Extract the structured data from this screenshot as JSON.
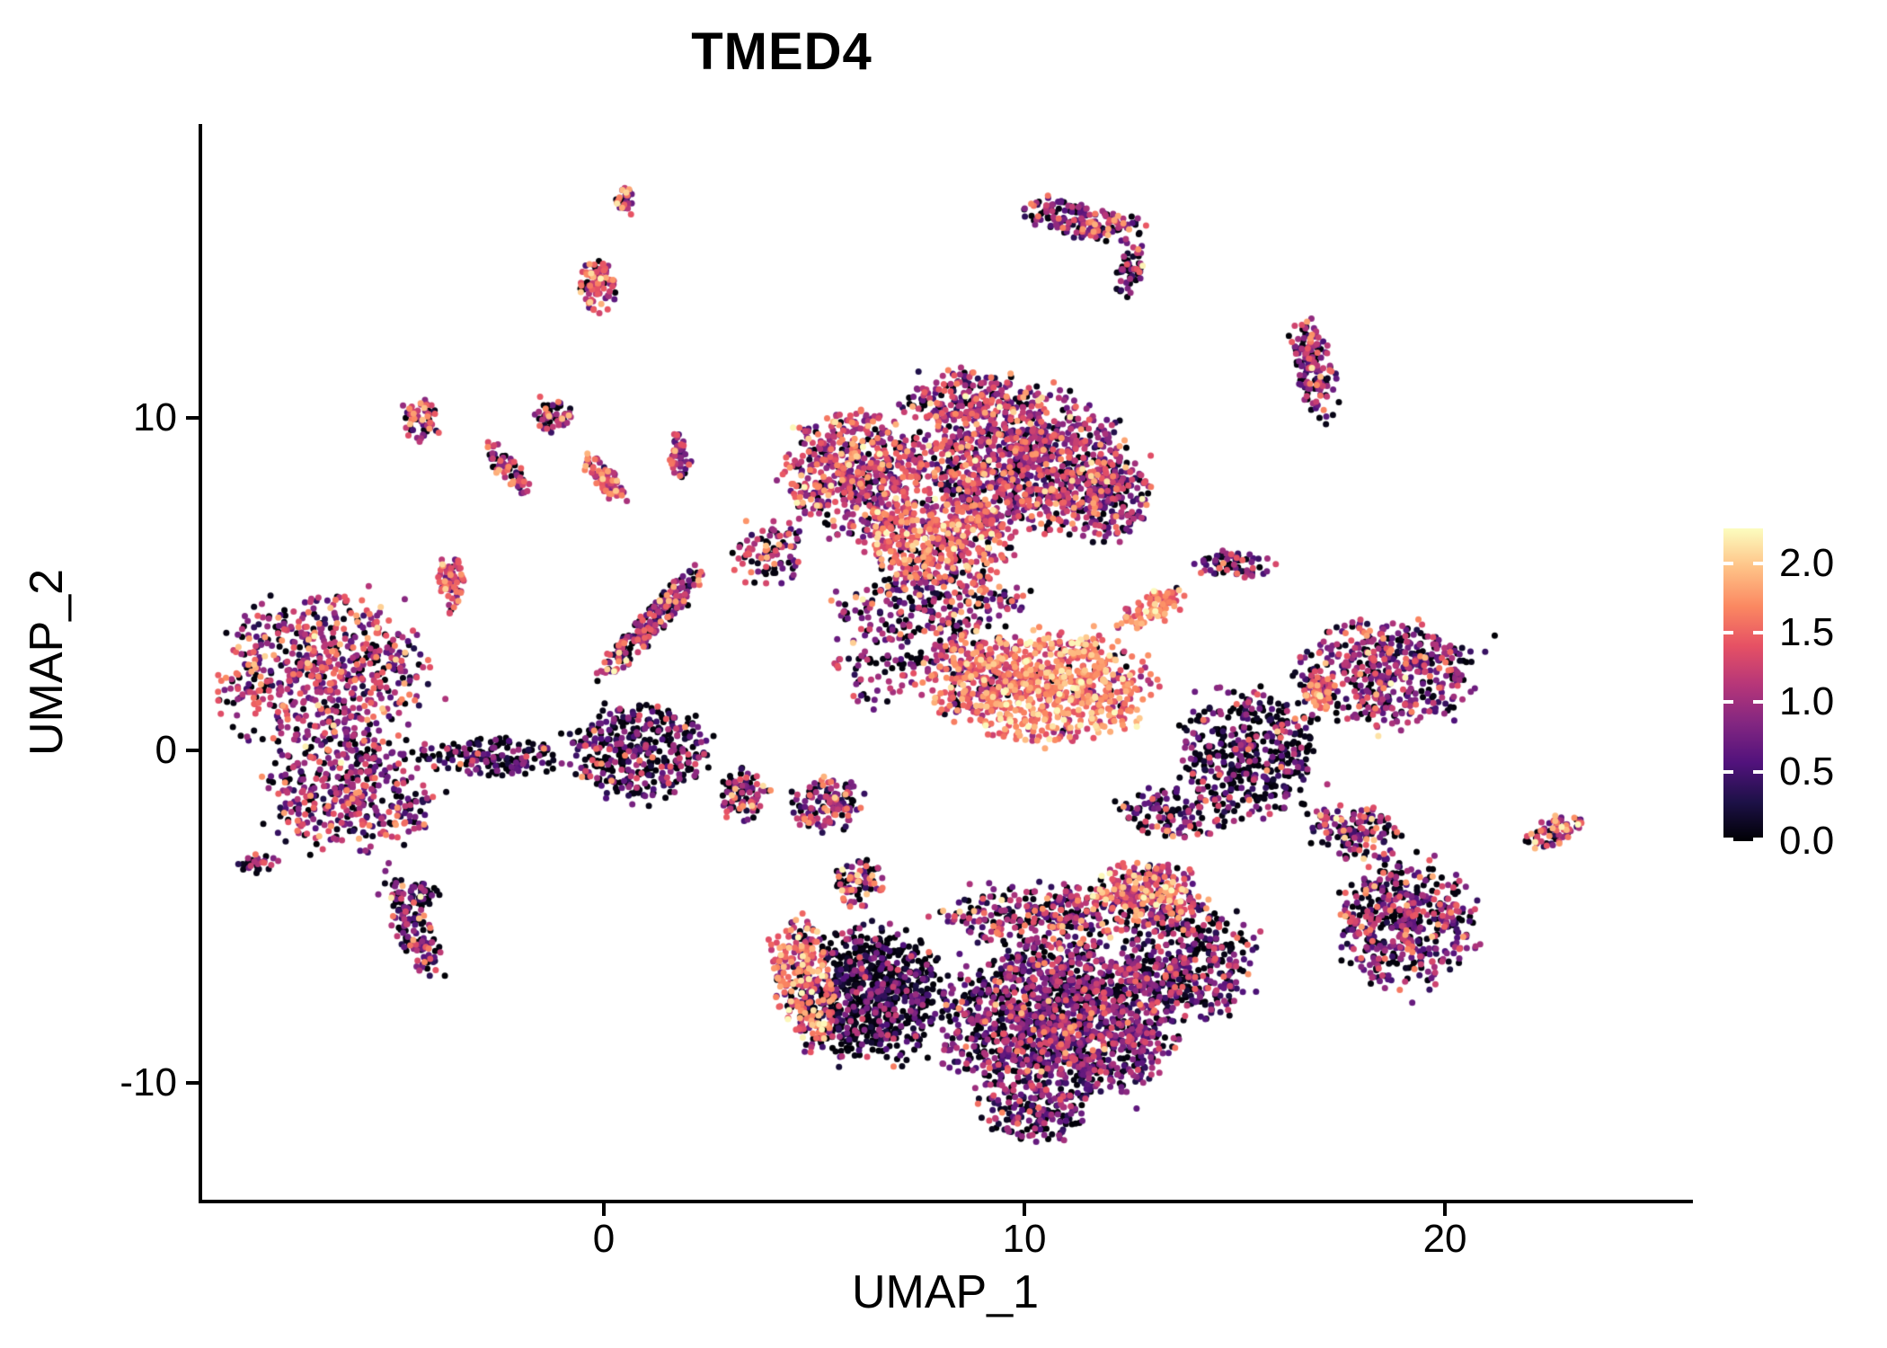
{
  "chart_data": {
    "type": "scatter",
    "title": "TMED4",
    "xlabel": "UMAP_1",
    "ylabel": "UMAP_2",
    "x_range": [
      -9.55,
      25.81
    ],
    "y_range": [
      -13.5,
      18.78
    ],
    "x_ticks": [
      0,
      10,
      20
    ],
    "y_ticks": [
      10,
      0,
      -10
    ],
    "grid": false,
    "background": "#ffffff",
    "point_radius_px": 3.5,
    "seed": 20,
    "colormap": {
      "name": "magma",
      "vmin": 0.0,
      "vmax": 2.25,
      "stops": [
        "#000004",
        "#1D1147",
        "#51127C",
        "#822681",
        "#B63679",
        "#E65164",
        "#FB8861",
        "#FEC287",
        "#FCFDBF"
      ]
    },
    "legend": {
      "position": "right",
      "tick_labels": [
        "2.0",
        "1.5",
        "1.0",
        "0.5",
        "0.0"
      ],
      "tick_values": [
        2.0,
        1.5,
        1.0,
        0.5,
        0.0
      ]
    },
    "clusters": [
      {
        "name": "left-main-upper",
        "cx": -6.7,
        "cy": 2.2,
        "rx": 2.3,
        "ry": 2.5,
        "rot": 0,
        "n": 650,
        "mean": 1.05,
        "sd": 0.45,
        "zero": 0.18
      },
      {
        "name": "left-main-lower",
        "cx": -6.0,
        "cy": -1.3,
        "rx": 2.0,
        "ry": 1.7,
        "rot": 0,
        "n": 380,
        "mean": 0.95,
        "sd": 0.45,
        "zero": 0.22
      },
      {
        "name": "left-tail",
        "cx": -4.6,
        "cy": -5.3,
        "rx": 0.45,
        "ry": 1.8,
        "rot": 20,
        "n": 130,
        "mean": 0.9,
        "sd": 0.5,
        "zero": 0.25
      },
      {
        "name": "left-top-spur",
        "cx": -3.6,
        "cy": 5.0,
        "rx": 0.3,
        "ry": 0.95,
        "rot": 0,
        "n": 70,
        "mean": 1.2,
        "sd": 0.4,
        "zero": 0.12
      },
      {
        "name": "nw-islet-a",
        "cx": -4.35,
        "cy": 9.9,
        "rx": 0.45,
        "ry": 0.6,
        "rot": 0,
        "n": 55,
        "mean": 1.2,
        "sd": 0.45,
        "zero": 0.15
      },
      {
        "name": "nw-streak-a",
        "cx": -2.3,
        "cy": 8.5,
        "rx": 0.3,
        "ry": 0.9,
        "rot": 30,
        "n": 60,
        "mean": 1.1,
        "sd": 0.45,
        "zero": 0.2
      },
      {
        "name": "nw-streak-b",
        "cx": 0.0,
        "cy": 8.2,
        "rx": 0.28,
        "ry": 0.85,
        "rot": 30,
        "n": 70,
        "mean": 1.3,
        "sd": 0.4,
        "zero": 0.1
      },
      {
        "name": "nw-islet-b",
        "cx": -1.2,
        "cy": 10.1,
        "rx": 0.45,
        "ry": 0.55,
        "rot": 0,
        "n": 50,
        "mean": 1.1,
        "sd": 0.5,
        "zero": 0.2
      },
      {
        "name": "top-tiny-islet",
        "cx": 0.5,
        "cy": 16.5,
        "rx": 0.22,
        "ry": 0.45,
        "rot": 0,
        "n": 30,
        "mean": 1.2,
        "sd": 0.5,
        "zero": 0.15
      },
      {
        "name": "top-islet",
        "cx": -0.15,
        "cy": 14.0,
        "rx": 0.42,
        "ry": 0.75,
        "rot": 0,
        "n": 90,
        "mean": 1.3,
        "sd": 0.45,
        "zero": 0.12
      },
      {
        "name": "top-right-ridge",
        "cx": 11.4,
        "cy": 15.9,
        "rx": 1.35,
        "ry": 0.55,
        "rot": -15,
        "n": 170,
        "mean": 0.95,
        "sd": 0.5,
        "zero": 0.25
      },
      {
        "name": "top-right-ridge-hook",
        "cx": 12.5,
        "cy": 14.4,
        "rx": 0.3,
        "ry": 0.8,
        "rot": -15,
        "n": 50,
        "mean": 0.9,
        "sd": 0.5,
        "zero": 0.25
      },
      {
        "name": "north-spur",
        "cx": 1.8,
        "cy": 8.9,
        "rx": 0.25,
        "ry": 0.7,
        "rot": 0,
        "n": 45,
        "mean": 1.1,
        "sd": 0.4,
        "zero": 0.15
      },
      {
        "name": "top-main-west",
        "cx": 6.0,
        "cy": 8.3,
        "rx": 1.6,
        "ry": 1.8,
        "rot": 0,
        "n": 550,
        "mean": 1.1,
        "sd": 0.45,
        "zero": 0.15
      },
      {
        "name": "top-main-east",
        "cx": 9.9,
        "cy": 8.7,
        "rx": 2.4,
        "ry": 2.0,
        "rot": 0,
        "n": 1000,
        "mean": 1.0,
        "sd": 0.45,
        "zero": 0.15
      },
      {
        "name": "top-main-south-orange",
        "cx": 7.9,
        "cy": 6.3,
        "rx": 1.7,
        "ry": 1.2,
        "rot": 0,
        "n": 450,
        "mean": 1.35,
        "sd": 0.4,
        "zero": 0.1
      },
      {
        "name": "top-main-crown",
        "cx": 8.6,
        "cy": 10.6,
        "rx": 1.5,
        "ry": 0.8,
        "rot": 0,
        "n": 180,
        "mean": 1.0,
        "sd": 0.45,
        "zero": 0.15
      },
      {
        "name": "top-main-east-edge",
        "cx": 11.9,
        "cy": 7.6,
        "rx": 1.1,
        "ry": 1.3,
        "rot": 0,
        "n": 220,
        "mean": 0.95,
        "sd": 0.45,
        "zero": 0.18
      },
      {
        "name": "top-main-fringe",
        "cx": 7.8,
        "cy": 4.5,
        "rx": 2.2,
        "ry": 1.0,
        "rot": 0,
        "n": 250,
        "mean": 0.9,
        "sd": 0.55,
        "zero": 0.3
      },
      {
        "name": "west-fringe",
        "cx": 3.9,
        "cy": 6.0,
        "rx": 0.8,
        "ry": 1.0,
        "rot": 0,
        "n": 90,
        "mean": 1.0,
        "sd": 0.5,
        "zero": 0.25
      },
      {
        "name": "center-bright-core",
        "cx": 10.7,
        "cy": 1.9,
        "rx": 2.2,
        "ry": 1.6,
        "rot": 0,
        "n": 750,
        "mean": 1.55,
        "sd": 0.35,
        "zero": 0.04
      },
      {
        "name": "center-bright-west",
        "cx": 8.7,
        "cy": 2.4,
        "rx": 1.1,
        "ry": 1.4,
        "rot": 0,
        "n": 220,
        "mean": 1.25,
        "sd": 0.4,
        "zero": 0.1
      },
      {
        "name": "center-beak",
        "cx": 13.1,
        "cy": 4.3,
        "rx": 0.9,
        "ry": 0.45,
        "rot": 30,
        "n": 90,
        "mean": 1.6,
        "sd": 0.3,
        "zero": 0.05
      },
      {
        "name": "center-sparse",
        "cx": 6.6,
        "cy": 2.6,
        "rx": 1.2,
        "ry": 1.2,
        "rot": 0,
        "n": 90,
        "mean": 0.8,
        "sd": 0.5,
        "zero": 0.35
      },
      {
        "name": "mid-islet-a",
        "cx": 3.3,
        "cy": -1.3,
        "rx": 0.6,
        "ry": 0.75,
        "rot": 0,
        "n": 90,
        "mean": 1.0,
        "sd": 0.55,
        "zero": 0.3
      },
      {
        "name": "mid-islet-b",
        "cx": 5.3,
        "cy": -1.6,
        "rx": 0.85,
        "ry": 0.8,
        "rot": 0,
        "n": 130,
        "mean": 0.95,
        "sd": 0.5,
        "zero": 0.3
      },
      {
        "name": "mid-islet-c",
        "cx": 6.1,
        "cy": -4.0,
        "rx": 0.6,
        "ry": 0.7,
        "rot": 0,
        "n": 80,
        "mean": 1.1,
        "sd": 0.5,
        "zero": 0.25
      },
      {
        "name": "west-bridge",
        "cx": -2.6,
        "cy": -0.2,
        "rx": 1.7,
        "ry": 0.55,
        "rot": 0,
        "n": 160,
        "mean": 0.6,
        "sd": 0.45,
        "zero": 0.45
      },
      {
        "name": "mid-dark-blob",
        "cx": 0.9,
        "cy": 0.0,
        "rx": 1.6,
        "ry": 1.4,
        "rot": 0,
        "n": 380,
        "mean": 0.7,
        "sd": 0.5,
        "zero": 0.45
      },
      {
        "name": "diagonal-streak",
        "cx": 1.1,
        "cy": 3.8,
        "rx": 0.35,
        "ry": 2.2,
        "rot": -35,
        "n": 220,
        "mean": 1.0,
        "sd": 0.5,
        "zero": 0.25
      },
      {
        "name": "east-islet-small",
        "cx": 15.0,
        "cy": 5.6,
        "rx": 0.9,
        "ry": 0.4,
        "rot": 0,
        "n": 70,
        "mean": 0.8,
        "sd": 0.5,
        "zero": 0.3
      },
      {
        "name": "east-purple",
        "cx": 18.6,
        "cy": 2.3,
        "rx": 2.1,
        "ry": 1.6,
        "rot": 0,
        "n": 480,
        "mean": 0.9,
        "sd": 0.45,
        "zero": 0.25
      },
      {
        "name": "east-orange-patch",
        "cx": 17.0,
        "cy": 1.7,
        "rx": 0.35,
        "ry": 0.6,
        "rot": 0,
        "n": 55,
        "mean": 1.5,
        "sd": 0.3,
        "zero": 0.05
      },
      {
        "name": "east-dark",
        "cx": 15.3,
        "cy": 0.0,
        "rx": 1.6,
        "ry": 1.8,
        "rot": 0,
        "n": 420,
        "mean": 0.6,
        "sd": 0.5,
        "zero": 0.45
      },
      {
        "name": "east-connector",
        "cx": 17.9,
        "cy": -2.5,
        "rx": 1.1,
        "ry": 0.8,
        "rot": -20,
        "n": 140,
        "mean": 1.0,
        "sd": 0.55,
        "zero": 0.3
      },
      {
        "name": "southeast-blob",
        "cx": 19.1,
        "cy": -5.2,
        "rx": 1.6,
        "ry": 1.9,
        "rot": 0,
        "n": 480,
        "mean": 0.85,
        "sd": 0.45,
        "zero": 0.3
      },
      {
        "name": "far-east-islet",
        "cx": 22.6,
        "cy": -2.4,
        "rx": 0.75,
        "ry": 0.35,
        "rot": 30,
        "n": 75,
        "mean": 1.2,
        "sd": 0.45,
        "zero": 0.15
      },
      {
        "name": "east-top-ridge",
        "cx": 16.9,
        "cy": 11.5,
        "rx": 0.45,
        "ry": 1.5,
        "rot": 10,
        "n": 140,
        "mean": 1.0,
        "sd": 0.5,
        "zero": 0.25
      },
      {
        "name": "south-dark-west",
        "cx": 6.3,
        "cy": -7.3,
        "rx": 1.8,
        "ry": 1.9,
        "rot": 0,
        "n": 750,
        "mean": 0.45,
        "sd": 0.45,
        "zero": 0.5
      },
      {
        "name": "south-orange-edge",
        "cx": 4.8,
        "cy": -7.0,
        "rx": 0.7,
        "ry": 1.9,
        "rot": 10,
        "n": 260,
        "mean": 1.4,
        "sd": 0.4,
        "zero": 0.12
      },
      {
        "name": "south-main",
        "cx": 10.8,
        "cy": -8.2,
        "rx": 2.7,
        "ry": 2.3,
        "rot": 0,
        "n": 1500,
        "mean": 0.8,
        "sd": 0.4,
        "zero": 0.3
      },
      {
        "name": "south-main-tail",
        "cx": 10.2,
        "cy": -10.9,
        "rx": 1.2,
        "ry": 0.9,
        "rot": 0,
        "n": 140,
        "mean": 0.7,
        "sd": 0.4,
        "zero": 0.35
      },
      {
        "name": "south-east-lobe",
        "cx": 13.9,
        "cy": -6.4,
        "rx": 1.5,
        "ry": 1.7,
        "rot": 0,
        "n": 420,
        "mean": 0.75,
        "sd": 0.45,
        "zero": 0.35
      },
      {
        "name": "south-orange-top",
        "cx": 12.9,
        "cy": -4.3,
        "rx": 1.3,
        "ry": 0.95,
        "rot": 0,
        "n": 280,
        "mean": 1.35,
        "sd": 0.45,
        "zero": 0.15
      },
      {
        "name": "south-top-scatter",
        "cx": 10.6,
        "cy": -5.0,
        "rx": 2.3,
        "ry": 1.0,
        "rot": 0,
        "n": 320,
        "mean": 1.0,
        "sd": 0.5,
        "zero": 0.3
      },
      {
        "name": "south-connector",
        "cx": 13.6,
        "cy": -1.9,
        "rx": 1.4,
        "ry": 0.9,
        "rot": 0,
        "n": 130,
        "mean": 0.9,
        "sd": 0.55,
        "zero": 0.35
      },
      {
        "name": "sw-tiny",
        "cx": -4.3,
        "cy": -4.3,
        "rx": 0.4,
        "ry": 0.3,
        "rot": 0,
        "n": 35,
        "mean": 0.6,
        "sd": 0.5,
        "zero": 0.4
      },
      {
        "name": "far-west-tiny",
        "cx": -8.2,
        "cy": -3.4,
        "rx": 0.5,
        "ry": 0.3,
        "rot": 0,
        "n": 30,
        "mean": 0.9,
        "sd": 0.5,
        "zero": 0.3
      }
    ]
  }
}
